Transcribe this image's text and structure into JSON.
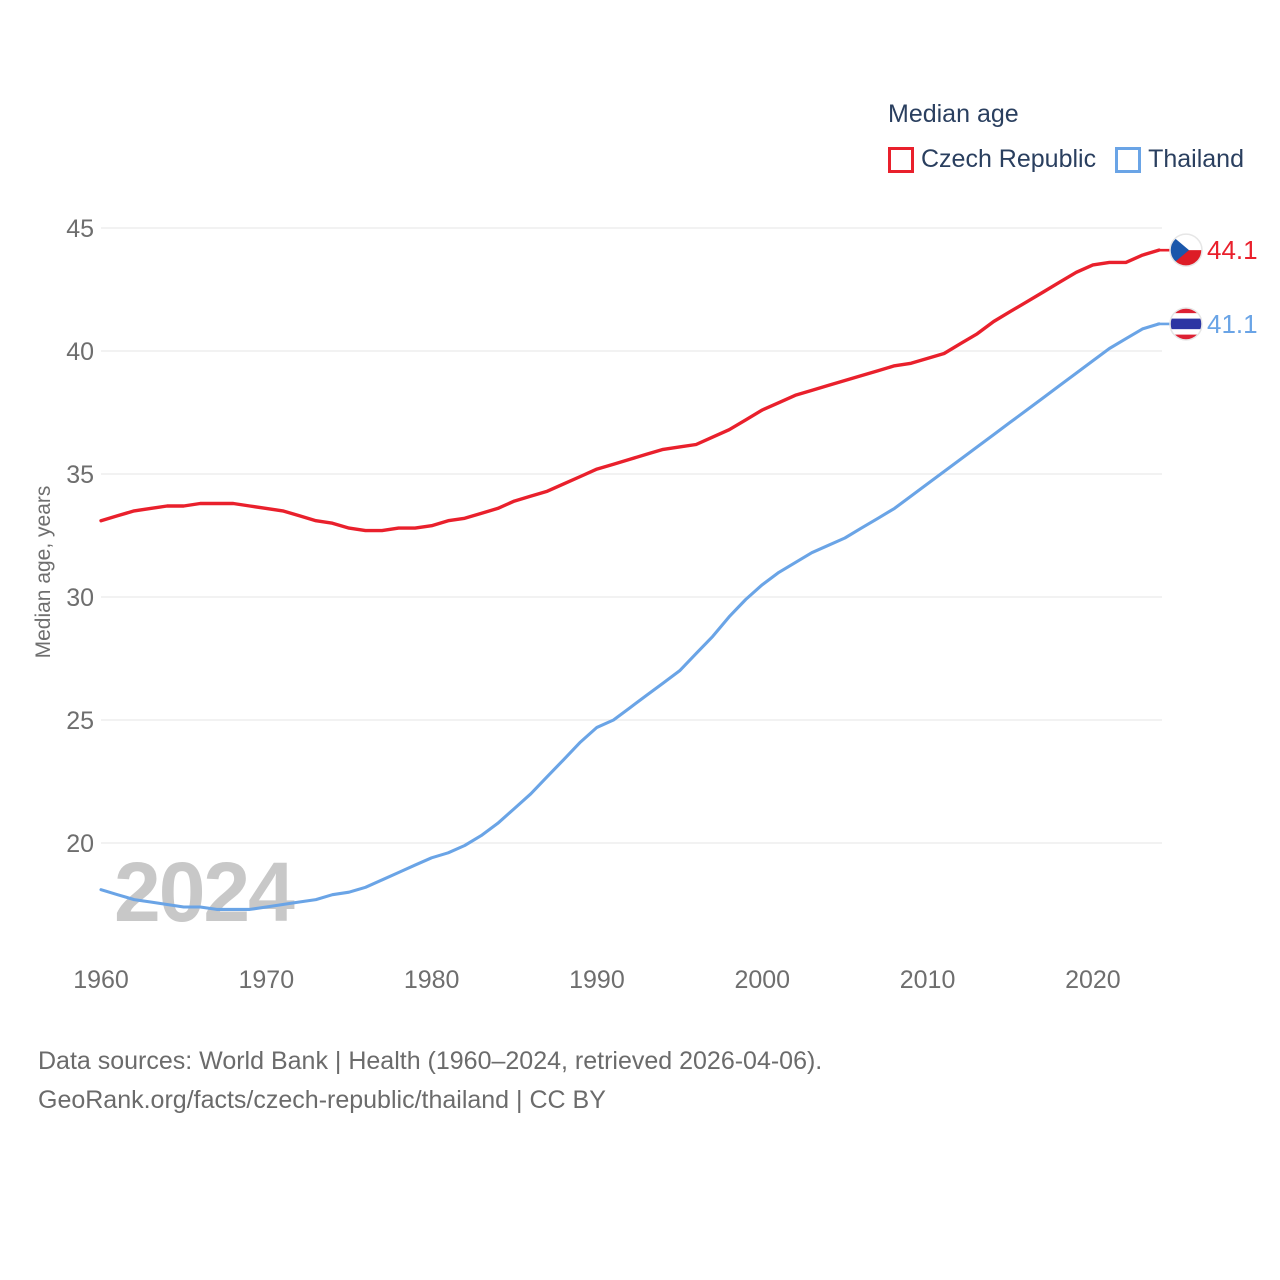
{
  "watermark": "2024",
  "legend": {
    "title": "Median age"
  },
  "footer": {
    "line1": "Data sources: World Bank | Health (1960–2024, retrieved 2026-04-06).",
    "line2": "GeoRank.org/facts/czech-republic/thailand | CC BY"
  },
  "chart_data": {
    "type": "line",
    "title": "Median age",
    "xlabel": "",
    "ylabel": "Median age, years",
    "x_ticks": [
      1960,
      1970,
      1980,
      1990,
      2000,
      2010,
      2020
    ],
    "y_ticks": [
      45,
      40,
      35,
      30,
      25,
      20
    ],
    "xlim": [
      1960,
      2024
    ],
    "ylim": [
      17,
      46
    ],
    "grid": "horizontal",
    "legend_position": "top-right",
    "x": [
      1960,
      1961,
      1962,
      1963,
      1964,
      1965,
      1966,
      1967,
      1968,
      1969,
      1970,
      1971,
      1972,
      1973,
      1974,
      1975,
      1976,
      1977,
      1978,
      1979,
      1980,
      1981,
      1982,
      1983,
      1984,
      1985,
      1986,
      1987,
      1988,
      1989,
      1990,
      1991,
      1992,
      1993,
      1994,
      1995,
      1996,
      1997,
      1998,
      1999,
      2000,
      2001,
      2002,
      2003,
      2004,
      2005,
      2006,
      2007,
      2008,
      2009,
      2010,
      2011,
      2012,
      2013,
      2014,
      2015,
      2016,
      2017,
      2018,
      2019,
      2020,
      2021,
      2022,
      2023,
      2024
    ],
    "series": [
      {
        "name": "Czech Republic",
        "color": "#e9202c",
        "end_label": "44.1",
        "end_value": 44.1,
        "flag": "czech-republic",
        "values": [
          33.1,
          33.3,
          33.5,
          33.6,
          33.7,
          33.7,
          33.8,
          33.8,
          33.8,
          33.7,
          33.6,
          33.5,
          33.3,
          33.1,
          33.0,
          32.8,
          32.7,
          32.7,
          32.8,
          32.8,
          32.9,
          33.1,
          33.2,
          33.4,
          33.6,
          33.9,
          34.1,
          34.3,
          34.6,
          34.9,
          35.2,
          35.4,
          35.6,
          35.8,
          36.0,
          36.1,
          36.2,
          36.5,
          36.8,
          37.2,
          37.6,
          37.9,
          38.2,
          38.4,
          38.6,
          38.8,
          39.0,
          39.2,
          39.4,
          39.5,
          39.7,
          39.9,
          40.3,
          40.7,
          41.2,
          41.6,
          42.0,
          42.4,
          42.8,
          43.2,
          43.5,
          43.6,
          43.6,
          43.9,
          44.1
        ]
      },
      {
        "name": "Thailand",
        "color": "#6aa4e6",
        "end_label": "41.1",
        "end_value": 41.1,
        "flag": "thailand",
        "values": [
          18.1,
          17.9,
          17.7,
          17.6,
          17.5,
          17.4,
          17.4,
          17.3,
          17.3,
          17.3,
          17.4,
          17.5,
          17.6,
          17.7,
          17.9,
          18.0,
          18.2,
          18.5,
          18.8,
          19.1,
          19.4,
          19.6,
          19.9,
          20.3,
          20.8,
          21.4,
          22.0,
          22.7,
          23.4,
          24.1,
          24.7,
          25.0,
          25.5,
          26.0,
          26.5,
          27.0,
          27.7,
          28.4,
          29.2,
          29.9,
          30.5,
          31.0,
          31.4,
          31.8,
          32.1,
          32.4,
          32.8,
          33.2,
          33.6,
          34.1,
          34.6,
          35.1,
          35.6,
          36.1,
          36.6,
          37.1,
          37.6,
          38.1,
          38.6,
          39.1,
          39.6,
          40.1,
          40.5,
          40.9,
          41.1
        ]
      }
    ]
  }
}
